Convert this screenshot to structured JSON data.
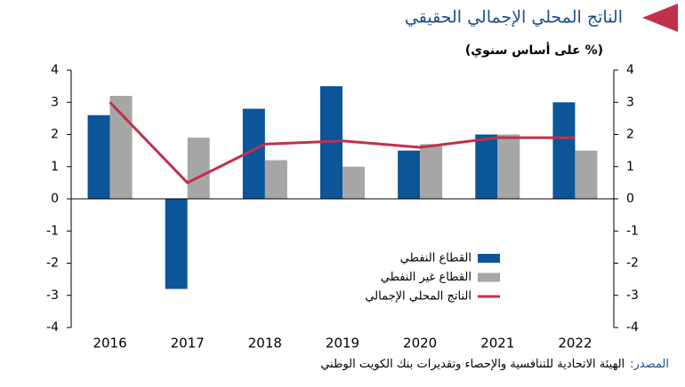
{
  "chart_data": {
    "type": "bar",
    "title": "الناتج المحلي الإجمالي الحقيقي",
    "subtitle": "(% على أساس سنوي)",
    "source_label": "المصدر:",
    "source_text": "الهيئة الاتحادية للتنافسية والإحصاء وتقديرات بنك الكويت الوطني",
    "categories": [
      "2016",
      "2017",
      "2018",
      "2019",
      "2020",
      "2021",
      "2022"
    ],
    "series": [
      {
        "name": "القطاع النفطي",
        "color": "#0b5598",
        "type": "bar",
        "values": [
          2.6,
          -2.8,
          2.8,
          3.5,
          1.5,
          2.0,
          3.0
        ]
      },
      {
        "name": "القطاع غير النفطي",
        "color": "#a6a6a6",
        "type": "bar",
        "values": [
          3.2,
          1.9,
          1.2,
          1.0,
          1.7,
          2.0,
          1.5
        ]
      },
      {
        "name": "الناتج المحلي الإجمالي",
        "color": "#c2304b",
        "type": "line",
        "values": [
          3.0,
          0.5,
          1.7,
          1.8,
          1.6,
          1.9,
          1.9
        ]
      }
    ],
    "ylim": [
      -4,
      4
    ],
    "yticks": [
      4,
      3,
      2,
      1,
      0,
      -1,
      -2,
      -3,
      -4
    ],
    "y2lim": [
      -4,
      4
    ],
    "y2ticks": [
      4,
      3,
      2,
      1,
      0,
      -1,
      -2,
      -3,
      -4
    ]
  }
}
